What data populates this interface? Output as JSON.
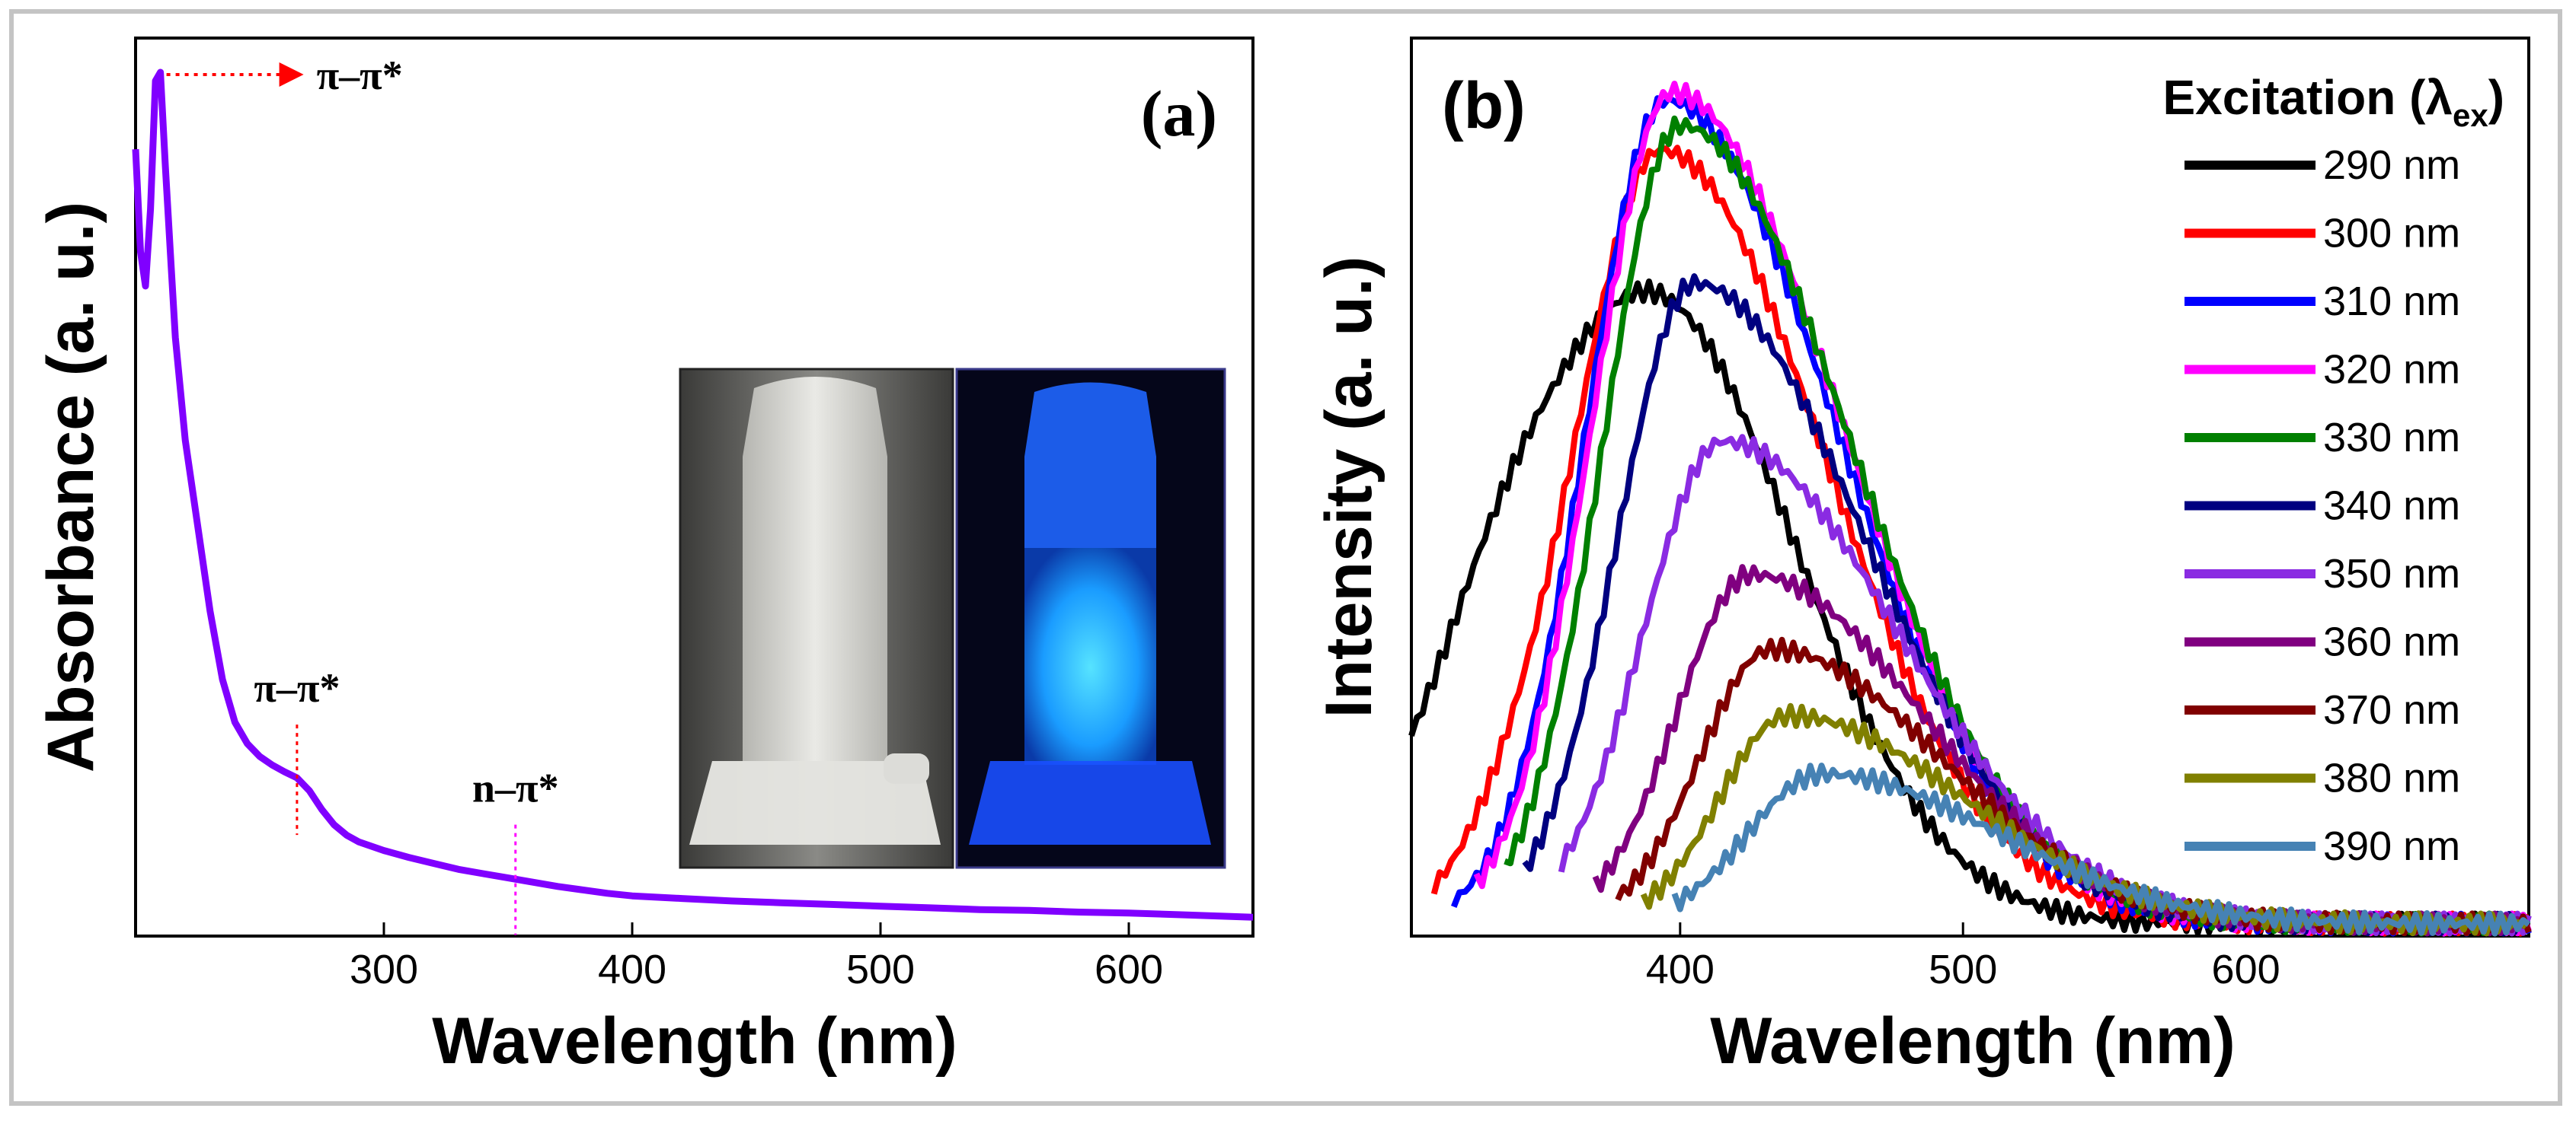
{
  "chart_data": [
    {
      "panel": "a",
      "type": "line",
      "panel_label": "(a)",
      "xlabel": "Wavelength (nm)",
      "ylabel": "Absorbance (a. u.)",
      "xlim": [
        200,
        650
      ],
      "ylim": [
        0,
        1.05
      ],
      "xticks": [
        300,
        400,
        500,
        600
      ],
      "yticks_shown": false,
      "grid": false,
      "series": [
        {
          "color": "#8000ff",
          "x": [
            200,
            202,
            204,
            206,
            208,
            210,
            212,
            214,
            216,
            218,
            220,
            225,
            230,
            235,
            240,
            245,
            250,
            255,
            260,
            265,
            270,
            275,
            280,
            285,
            290,
            300,
            310,
            320,
            330,
            340,
            350,
            360,
            370,
            380,
            390,
            400,
            420,
            440,
            460,
            480,
            500,
            520,
            540,
            560,
            580,
            600,
            620,
            650
          ],
          "y": [
            0.92,
            0.8,
            0.76,
            0.85,
            1.0,
            1.01,
            0.9,
            0.8,
            0.7,
            0.64,
            0.58,
            0.48,
            0.38,
            0.3,
            0.25,
            0.225,
            0.21,
            0.2,
            0.192,
            0.185,
            0.17,
            0.148,
            0.13,
            0.118,
            0.11,
            0.1,
            0.092,
            0.085,
            0.078,
            0.073,
            0.068,
            0.063,
            0.058,
            0.054,
            0.05,
            0.047,
            0.044,
            0.041,
            0.039,
            0.037,
            0.035,
            0.033,
            0.031,
            0.03,
            0.028,
            0.027,
            0.025,
            0.022
          ]
        }
      ],
      "annotations": [
        {
          "text": "π–π*",
          "x": 210,
          "y": 1.01,
          "arrow": true
        },
        {
          "text": "π–π*",
          "x": 265,
          "y": 0.185
        },
        {
          "text": "n–π*",
          "x": 353,
          "y": 0.068
        }
      ],
      "inset": "photo of two vials: left under room light, right glowing blue under UV"
    },
    {
      "panel": "b",
      "type": "line",
      "panel_label": "(b)",
      "xlabel": "Wavelength (nm)",
      "ylabel": "Intensity (a. u.)",
      "xlim": [
        305,
        700
      ],
      "ylim": [
        0,
        1.08
      ],
      "xticks": [
        400,
        500,
        600
      ],
      "yticks_shown": false,
      "grid": false,
      "legend": {
        "title": "Excitation (λ",
        "title_sub": "ex",
        "title_close": ")",
        "placement": "top-right"
      },
      "series": [
        {
          "name": "290 nm",
          "color": "#000000",
          "start": 305,
          "peak": 388,
          "amp": 0.76,
          "sl": 52,
          "sr": 52,
          "shoulder": true
        },
        {
          "name": "300 nm",
          "color": "#ff0000",
          "start": 313,
          "peak": 393,
          "amp": 0.93,
          "sl": 30,
          "sr": 58,
          "shoulder": true
        },
        {
          "name": "310 nm",
          "color": "#0000ff",
          "start": 320,
          "peak": 395,
          "amp": 0.99,
          "sl": 28,
          "sr": 60
        },
        {
          "name": "320 nm",
          "color": "#ff00ff",
          "start": 328,
          "peak": 397,
          "amp": 1.0,
          "sl": 28,
          "sr": 60
        },
        {
          "name": "330 nm",
          "color": "#008000",
          "start": 338,
          "peak": 400,
          "amp": 0.96,
          "sl": 27,
          "sr": 60
        },
        {
          "name": "340 nm",
          "color": "#000080",
          "start": 345,
          "peak": 405,
          "amp": 0.77,
          "sl": 27,
          "sr": 60
        },
        {
          "name": "350 nm",
          "color": "#8a2be2",
          "start": 358,
          "peak": 415,
          "amp": 0.58,
          "sl": 28,
          "sr": 62
        },
        {
          "name": "360 nm",
          "color": "#800080",
          "start": 370,
          "peak": 425,
          "amp": 0.42,
          "sl": 26,
          "sr": 60
        },
        {
          "name": "370 nm",
          "color": "#800000",
          "start": 378,
          "peak": 432,
          "amp": 0.33,
          "sl": 25,
          "sr": 60
        },
        {
          "name": "380 nm",
          "color": "#808000",
          "start": 387,
          "peak": 438,
          "amp": 0.25,
          "sl": 24,
          "sr": 62
        },
        {
          "name": "390 nm",
          "color": "#4682b4",
          "start": 398,
          "peak": 450,
          "amp": 0.18,
          "sl": 26,
          "sr": 62
        }
      ]
    }
  ]
}
